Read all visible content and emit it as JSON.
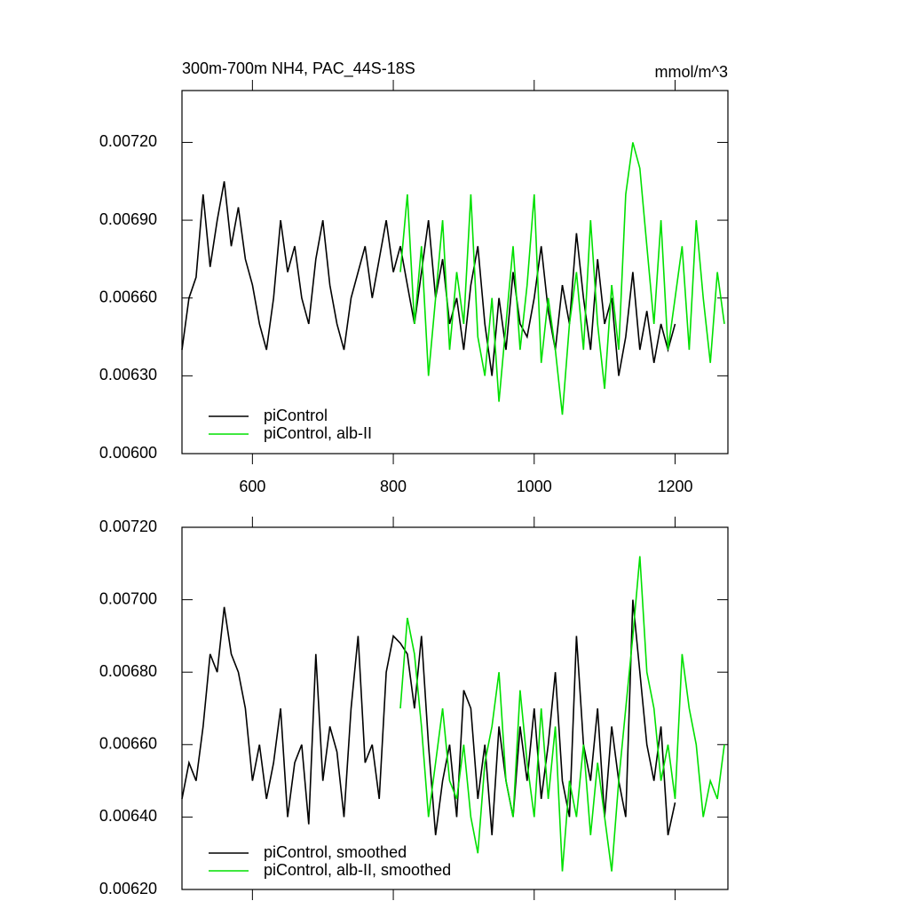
{
  "chart_data": [
    {
      "type": "line",
      "title": "300m-700m NH4, PAC_44S-18S",
      "units": "mmol/m^3",
      "xlim": [
        500,
        1275
      ],
      "xticks": [
        600,
        800,
        1000,
        1200
      ],
      "ylim": [
        0.006,
        0.0074
      ],
      "yticks": [
        {
          "value": 0.006,
          "label": "0.00600"
        },
        {
          "value": 0.0063,
          "label": "0.00630"
        },
        {
          "value": 0.0066,
          "label": "0.00660"
        },
        {
          "value": 0.0069,
          "label": "0.00690"
        },
        {
          "value": 0.0072,
          "label": "0.00720"
        }
      ],
      "series": [
        {
          "name": "piControl",
          "color": "#000000",
          "x": [
            500,
            510,
            520,
            530,
            540,
            550,
            560,
            570,
            580,
            590,
            600,
            610,
            620,
            630,
            640,
            650,
            660,
            670,
            680,
            690,
            700,
            710,
            720,
            730,
            740,
            750,
            760,
            770,
            780,
            790,
            800,
            810,
            820,
            830,
            840,
            850,
            860,
            870,
            880,
            890,
            900,
            910,
            920,
            930,
            940,
            950,
            960,
            970,
            980,
            990,
            1000,
            1010,
            1020,
            1030,
            1040,
            1050,
            1060,
            1070,
            1080,
            1090,
            1100,
            1110,
            1120,
            1130,
            1140,
            1150,
            1160,
            1170,
            1180,
            1190,
            1200
          ],
          "values": [
            0.0064,
            0.0066,
            0.00668,
            0.007,
            0.00672,
            0.0069,
            0.00705,
            0.0068,
            0.00695,
            0.00675,
            0.00665,
            0.0065,
            0.0064,
            0.0066,
            0.0069,
            0.0067,
            0.0068,
            0.0066,
            0.0065,
            0.00675,
            0.0069,
            0.00665,
            0.0065,
            0.0064,
            0.0066,
            0.0067,
            0.0068,
            0.0066,
            0.00675,
            0.0069,
            0.0067,
            0.0068,
            0.00665,
            0.0065,
            0.0067,
            0.0069,
            0.0066,
            0.00675,
            0.0065,
            0.0066,
            0.0064,
            0.00665,
            0.0068,
            0.0065,
            0.0063,
            0.0066,
            0.0064,
            0.0067,
            0.0065,
            0.00645,
            0.0066,
            0.0068,
            0.00655,
            0.0064,
            0.00665,
            0.0065,
            0.00685,
            0.0066,
            0.0064,
            0.00675,
            0.0065,
            0.0066,
            0.0063,
            0.00645,
            0.0067,
            0.0064,
            0.00655,
            0.00635,
            0.0065,
            0.0064,
            0.0065
          ]
        },
        {
          "name": "piControl, alb-II",
          "color": "#00e000",
          "x": [
            810,
            820,
            830,
            840,
            850,
            860,
            870,
            880,
            890,
            900,
            910,
            920,
            930,
            940,
            950,
            960,
            970,
            980,
            990,
            1000,
            1010,
            1020,
            1030,
            1040,
            1050,
            1060,
            1070,
            1080,
            1090,
            1100,
            1110,
            1120,
            1130,
            1140,
            1150,
            1160,
            1170,
            1180,
            1190,
            1200,
            1210,
            1220,
            1230,
            1240,
            1250,
            1260,
            1270
          ],
          "values": [
            0.0067,
            0.007,
            0.0065,
            0.0068,
            0.0063,
            0.0066,
            0.0069,
            0.0064,
            0.0067,
            0.0065,
            0.007,
            0.00645,
            0.0063,
            0.0066,
            0.0062,
            0.0065,
            0.0068,
            0.0064,
            0.00665,
            0.007,
            0.00635,
            0.0066,
            0.0064,
            0.00615,
            0.0065,
            0.0067,
            0.0064,
            0.0069,
            0.0065,
            0.00625,
            0.00665,
            0.0064,
            0.007,
            0.0072,
            0.0071,
            0.0068,
            0.0065,
            0.0069,
            0.0064,
            0.0066,
            0.0068,
            0.0064,
            0.0069,
            0.0066,
            0.00635,
            0.0067,
            0.0065
          ]
        }
      ]
    },
    {
      "type": "line",
      "xlim": [
        500,
        1275
      ],
      "xticks": [
        600,
        800,
        1000,
        1200
      ],
      "ylim": [
        0.0062,
        0.0072
      ],
      "yticks": [
        {
          "value": 0.0062,
          "label": "0.00620"
        },
        {
          "value": 0.0064,
          "label": "0.00640"
        },
        {
          "value": 0.0066,
          "label": "0.00660"
        },
        {
          "value": 0.0068,
          "label": "0.00680"
        },
        {
          "value": 0.007,
          "label": "0.00700"
        },
        {
          "value": 0.0072,
          "label": "0.00720"
        }
      ],
      "series": [
        {
          "name": "piControl, smoothed",
          "color": "#000000",
          "x": [
            500,
            510,
            520,
            530,
            540,
            550,
            560,
            570,
            580,
            590,
            600,
            610,
            620,
            630,
            640,
            650,
            660,
            670,
            680,
            690,
            700,
            710,
            720,
            730,
            740,
            750,
            760,
            770,
            780,
            790,
            800,
            810,
            820,
            830,
            840,
            850,
            860,
            870,
            880,
            890,
            900,
            910,
            920,
            930,
            940,
            950,
            960,
            970,
            980,
            990,
            1000,
            1010,
            1020,
            1030,
            1040,
            1050,
            1060,
            1070,
            1080,
            1090,
            1100,
            1110,
            1120,
            1130,
            1140,
            1150,
            1160,
            1170,
            1180,
            1190,
            1200
          ],
          "values": [
            0.00645,
            0.00655,
            0.0065,
            0.00665,
            0.00685,
            0.0068,
            0.00698,
            0.00685,
            0.0068,
            0.0067,
            0.0065,
            0.0066,
            0.00645,
            0.00655,
            0.0067,
            0.0064,
            0.00655,
            0.0066,
            0.00638,
            0.00685,
            0.0065,
            0.00665,
            0.00658,
            0.0064,
            0.0067,
            0.0069,
            0.00655,
            0.0066,
            0.00645,
            0.0068,
            0.0069,
            0.00688,
            0.00685,
            0.0067,
            0.0069,
            0.0066,
            0.00635,
            0.0065,
            0.0066,
            0.0064,
            0.00675,
            0.0067,
            0.00645,
            0.0066,
            0.00635,
            0.00665,
            0.0065,
            0.0064,
            0.00665,
            0.0065,
            0.0067,
            0.00645,
            0.0066,
            0.0068,
            0.0065,
            0.0064,
            0.0069,
            0.0066,
            0.0065,
            0.0067,
            0.0064,
            0.00665,
            0.0065,
            0.0064,
            0.007,
            0.0068,
            0.0066,
            0.0065,
            0.00665,
            0.00635,
            0.00644
          ]
        },
        {
          "name": "piControl, alb-II, smoothed",
          "color": "#00e000",
          "x": [
            810,
            820,
            830,
            840,
            850,
            860,
            870,
            880,
            890,
            900,
            910,
            920,
            930,
            940,
            950,
            960,
            970,
            980,
            990,
            1000,
            1010,
            1020,
            1030,
            1040,
            1050,
            1060,
            1070,
            1080,
            1090,
            1100,
            1110,
            1120,
            1130,
            1140,
            1150,
            1160,
            1170,
            1180,
            1190,
            1200,
            1210,
            1220,
            1230,
            1240,
            1250,
            1260,
            1270
          ],
          "values": [
            0.0067,
            0.00695,
            0.00685,
            0.00665,
            0.0064,
            0.00655,
            0.0067,
            0.0065,
            0.00645,
            0.0066,
            0.0064,
            0.0063,
            0.00655,
            0.00665,
            0.0068,
            0.0065,
            0.0064,
            0.00675,
            0.00655,
            0.0064,
            0.0067,
            0.00645,
            0.00665,
            0.00625,
            0.0065,
            0.0064,
            0.0066,
            0.00635,
            0.00655,
            0.0064,
            0.00625,
            0.0065,
            0.0067,
            0.0069,
            0.00712,
            0.0068,
            0.0067,
            0.0065,
            0.0066,
            0.00645,
            0.00685,
            0.0067,
            0.0066,
            0.0064,
            0.0065,
            0.00645,
            0.0066
          ]
        }
      ]
    }
  ]
}
